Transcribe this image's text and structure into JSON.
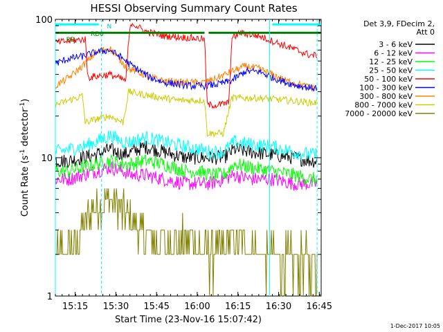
{
  "chart_data": {
    "type": "line",
    "title": "HESSI Observing Summary Count Rates",
    "xlabel": "Start Time (23-Nov-16 15:07:42)",
    "ylabel": "Count Rate (s",
    "ylabel_sup": "-1",
    "ylabel_tail": " detector",
    "ylabel_sup2": "-1",
    "ylabel_end": ")",
    "y_scale": "log",
    "ylim": [
      1,
      100
    ],
    "xlim_minutes": [
      0,
      98
    ],
    "x_ticks": [
      {
        "label": "15:15",
        "min": 7.3
      },
      {
        "label": "15:30",
        "min": 22.3
      },
      {
        "label": "15:45",
        "min": 37.3
      },
      {
        "label": "16:00",
        "min": 52.3
      },
      {
        "label": "16:15",
        "min": 67.3
      },
      {
        "label": "16:30",
        "min": 82.3
      },
      {
        "label": "16:45",
        "min": 97.3
      }
    ],
    "y_ticks": [
      {
        "label": "1",
        "value": 1
      },
      {
        "label": "10",
        "value": 10
      },
      {
        "label": "100",
        "value": 100
      }
    ],
    "legend_header": [
      "Det 3,9, FDecim 2,",
      "Att 0"
    ],
    "series": [
      {
        "name": "3 - 6 keV",
        "color": "#000000",
        "x": [
          0,
          5,
          10,
          15,
          20,
          25,
          28,
          33,
          40,
          48,
          53,
          57,
          62,
          66,
          72,
          80,
          88,
          94
        ],
        "values": [
          9.5,
          9.5,
          10,
          10.5,
          11.5,
          10.5,
          11,
          12,
          11,
          10,
          10,
          10,
          10,
          11.5,
          11,
          10.5,
          10,
          9.5
        ]
      },
      {
        "name": "6 - 12 keV",
        "color": "#ff00ff",
        "x": [
          0,
          5,
          10,
          15,
          20,
          25,
          28,
          33,
          40,
          48,
          53,
          57,
          62,
          66,
          72,
          80,
          88,
          94
        ],
        "values": [
          7,
          7,
          7.5,
          8,
          8.5,
          8,
          7.5,
          7.5,
          7,
          6.5,
          6.5,
          6.5,
          7,
          7.5,
          7,
          7,
          6.5,
          6.5
        ]
      },
      {
        "name": "12 - 25 keV",
        "color": "#00ff00",
        "x": [
          0,
          5,
          10,
          15,
          20,
          25,
          28,
          33,
          40,
          48,
          53,
          57,
          62,
          66,
          72,
          80,
          88,
          94
        ],
        "values": [
          8,
          8,
          8.5,
          9,
          9.5,
          9,
          9,
          9.5,
          9,
          8,
          8,
          7.5,
          7.5,
          9,
          8.5,
          8,
          7.5,
          7
        ]
      },
      {
        "name": "25 - 50 keV",
        "color": "#00ffff",
        "x": [
          0,
          5,
          10,
          15,
          20,
          25,
          28,
          33,
          40,
          48,
          53,
          57,
          62,
          66,
          72,
          80,
          88,
          94
        ],
        "values": [
          11,
          11.5,
          12,
          13,
          14.5,
          13,
          13,
          14,
          13,
          12,
          11.5,
          11,
          11,
          13,
          12.5,
          12,
          11,
          10.5
        ]
      },
      {
        "name": "50 - 100 keV",
        "color": "#ff0000",
        "x": [
          0,
          6,
          11,
          12,
          20,
          26,
          27,
          28,
          33,
          40,
          48,
          55,
          56,
          60,
          64,
          65,
          68,
          75,
          85,
          94
        ],
        "values": [
          68,
          70,
          72,
          38,
          40,
          36,
          70,
          95,
          82,
          76,
          74,
          72,
          24,
          24,
          25,
          72,
          80,
          76,
          64,
          55
        ]
      },
      {
        "name": "100 - 300 keV",
        "color": "#0000ff",
        "x": [
          0,
          5,
          10,
          15,
          20,
          25,
          27,
          30,
          35,
          40,
          45,
          50,
          55,
          60,
          65,
          70,
          75,
          80,
          85,
          90,
          94
        ],
        "values": [
          48,
          52,
          54,
          58,
          60,
          52,
          48,
          44,
          38,
          35,
          34,
          33,
          33,
          34,
          36,
          42,
          42,
          38,
          35,
          33,
          32
        ]
      },
      {
        "name": "300 - 800 keV",
        "color": "#ff8000",
        "x": [
          0,
          5,
          10,
          15,
          20,
          25,
          27,
          30,
          35,
          40,
          45,
          50,
          55,
          60,
          65,
          70,
          75,
          80,
          85,
          90,
          94
        ],
        "values": [
          33,
          38,
          46,
          58,
          62,
          48,
          44,
          42,
          38,
          36,
          35,
          35,
          35,
          38,
          42,
          46,
          44,
          40,
          36,
          34,
          32
        ]
      },
      {
        "name": "800 - 7000 keV",
        "color": "#cccc00",
        "x": [
          0,
          5,
          10,
          11,
          15,
          20,
          25,
          27,
          35,
          45,
          55,
          56,
          62,
          65,
          75,
          85,
          94
        ],
        "values": [
          24,
          26,
          28,
          18,
          19,
          20,
          18,
          30,
          28,
          26,
          26,
          15,
          15,
          27,
          27,
          26,
          25
        ]
      },
      {
        "name": "7000 - 20000 keV",
        "color": "#808000",
        "x": [
          0,
          5,
          10,
          15,
          20,
          25,
          30,
          35,
          40,
          45,
          50,
          55,
          60,
          65,
          70,
          75,
          80,
          85,
          90,
          94
        ],
        "values": [
          2,
          2,
          3,
          4.5,
          5,
          4,
          3,
          2.5,
          2.5,
          2.5,
          2.5,
          2,
          2,
          2.5,
          2.5,
          2,
          2,
          1.8,
          1.8,
          1.8
        ]
      }
    ],
    "flags": [
      {
        "color": "#008000",
        "level": 80,
        "from_min": 0,
        "to_min": 98,
        "gaps": [
          [
            55,
            56.5
          ]
        ]
      },
      {
        "color": "#00ffff",
        "level": 92,
        "from_min": 0,
        "to_min": 16
      },
      {
        "color": "#00ffff",
        "level": 92,
        "from_min": 80,
        "to_min": 98
      }
    ],
    "annotations": [
      {
        "text": "RD",
        "color": "#008000",
        "min": 4,
        "value": 69
      },
      {
        "text": "RD0",
        "color": "#008000",
        "min": 13,
        "value": 76
      },
      {
        "text": "N",
        "color": "#00c0c0",
        "min": 19,
        "value": 86
      }
    ],
    "vlines": [
      {
        "min": 0,
        "color": "#00ffff",
        "style": "solid"
      },
      {
        "min": 17,
        "color": "#00ffff",
        "style": "dashed"
      },
      {
        "min": 79,
        "color": "#00ffff",
        "style": "solid"
      },
      {
        "min": 96.5,
        "color": "#00ffff",
        "style": "dashed"
      }
    ],
    "timestamp": "1-Dec-2017 10:05"
  }
}
